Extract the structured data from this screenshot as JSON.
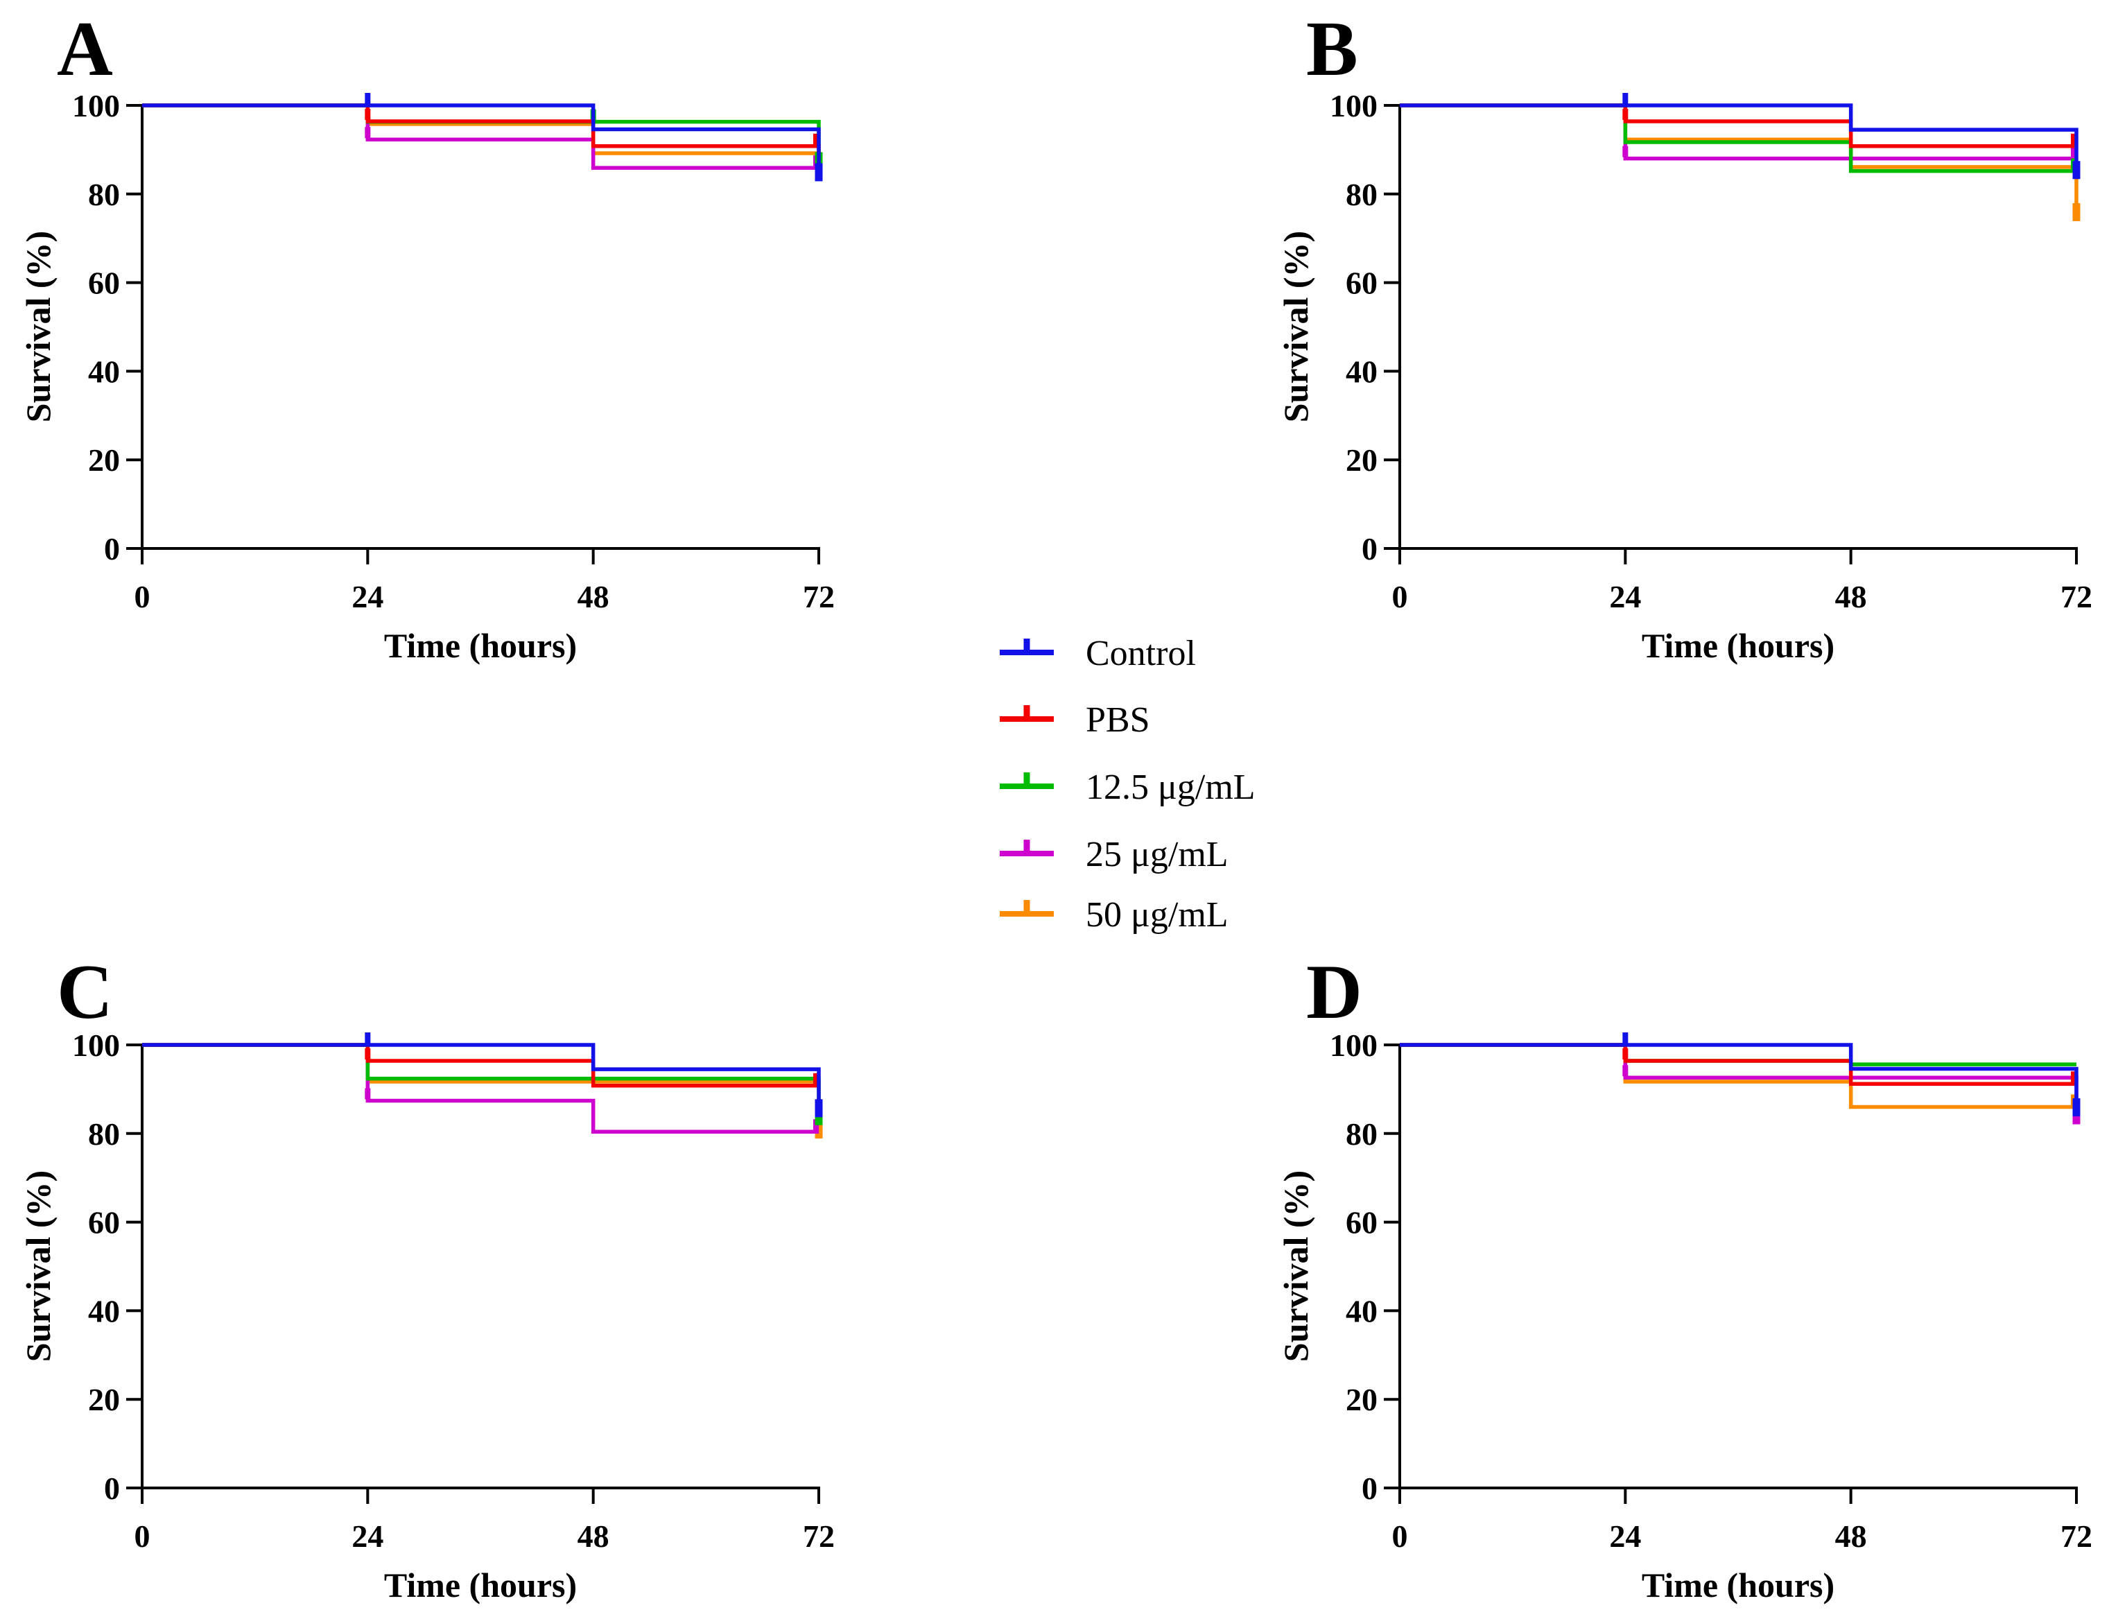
{
  "figure": {
    "background": "#ffffff",
    "axis_color": "#000000",
    "legend": {
      "items": [
        {
          "label": "Control",
          "color": "#1212E8"
        },
        {
          "label": "PBS",
          "color": "#F40000"
        },
        {
          "label": "12.5 μg/mL",
          "color": "#00BB00"
        },
        {
          "label": "25 μg/mL",
          "color": "#CE00CE"
        },
        {
          "label": "50 μg/mL",
          "color": "#FB8B00"
        }
      ]
    }
  },
  "chart_data": [
    {
      "panel": "A",
      "type": "line",
      "subtype": "kaplan-meier-step",
      "xlabel": "Time (hours)",
      "ylabel": "Survival (%)",
      "xticks": [
        0,
        24,
        48,
        72
      ],
      "yticks": [
        0,
        20,
        40,
        60,
        80,
        100
      ],
      "xlim": [
        0,
        72
      ],
      "ylim": [
        0,
        100
      ],
      "grid": false,
      "series": [
        {
          "name": "Control",
          "color": "#1212E8",
          "interval_levels": [
            100,
            100,
            94.6
          ],
          "end_value": 83.5,
          "censor_ticks": [
            {
              "t": 24,
              "level": 100
            }
          ]
        },
        {
          "name": "PBS",
          "color": "#F40000",
          "interval_levels": [
            100,
            96.4,
            90.8
          ],
          "end_value": 89.3,
          "censor_ticks": [
            {
              "t": 24,
              "level": 96.4
            },
            {
              "t": 72,
              "level": 90.8
            }
          ]
        },
        {
          "name": "12.5 μg/mL",
          "color": "#00BB00",
          "interval_levels": [
            100,
            96.3,
            96.3
          ],
          "end_value": 86.0,
          "censor_ticks": [
            {
              "t": 48,
              "level": 96.3
            }
          ]
        },
        {
          "name": "25 μg/mL",
          "color": "#CE00CE",
          "interval_levels": [
            100,
            92.3,
            85.9
          ],
          "end_value": 85.9,
          "censor_ticks": [
            {
              "t": 24,
              "level": 92.3
            },
            {
              "t": 72,
              "level": 85.9
            }
          ]
        },
        {
          "name": "50 μg/mL",
          "color": "#FB8B00",
          "interval_levels": [
            100,
            95.8,
            89.2
          ],
          "end_value": 89.2,
          "censor_ticks": []
        }
      ]
    },
    {
      "panel": "B",
      "type": "line",
      "subtype": "kaplan-meier-step",
      "xlabel": "Time (hours)",
      "ylabel": "Survival (%)",
      "xticks": [
        0,
        24,
        48,
        72
      ],
      "yticks": [
        0,
        20,
        40,
        60,
        80,
        100
      ],
      "xlim": [
        0,
        72
      ],
      "ylim": [
        0,
        100
      ],
      "grid": false,
      "series": [
        {
          "name": "Control",
          "color": "#1212E8",
          "interval_levels": [
            100,
            100,
            94.5
          ],
          "end_value": 84.0,
          "censor_ticks": [
            {
              "t": 24,
              "level": 100
            }
          ]
        },
        {
          "name": "PBS",
          "color": "#F40000",
          "interval_levels": [
            100,
            96.4,
            90.8
          ],
          "end_value": 90.8,
          "censor_ticks": [
            {
              "t": 24,
              "level": 96.4
            },
            {
              "t": 72,
              "level": 90.8
            }
          ]
        },
        {
          "name": "12.5 μg/mL",
          "color": "#00BB00",
          "interval_levels": [
            100,
            91.7,
            85.2
          ],
          "end_value": 85.2,
          "censor_ticks": [
            {
              "t": 72,
              "level": 85.2
            }
          ]
        },
        {
          "name": "25 μg/mL",
          "color": "#CE00CE",
          "interval_levels": [
            100,
            88.0,
            88.0
          ],
          "end_value": 88.0,
          "censor_ticks": [
            {
              "t": 24,
              "level": 88.0
            },
            {
              "t": 72,
              "level": 88.0
            }
          ]
        },
        {
          "name": "50 μg/mL",
          "color": "#FB8B00",
          "interval_levels": [
            100,
            92.3,
            86.1
          ],
          "end_value": 74.5,
          "censor_ticks": []
        }
      ]
    },
    {
      "panel": "C",
      "type": "line",
      "subtype": "kaplan-meier-step",
      "xlabel": "Time (hours)",
      "ylabel": "Survival (%)",
      "xticks": [
        0,
        24,
        48,
        72
      ],
      "yticks": [
        0,
        20,
        40,
        60,
        80,
        100
      ],
      "xlim": [
        0,
        72
      ],
      "ylim": [
        0,
        100
      ],
      "grid": false,
      "series": [
        {
          "name": "Control",
          "color": "#1212E8",
          "interval_levels": [
            100,
            100,
            94.5
          ],
          "end_value": 84.3,
          "censor_ticks": [
            {
              "t": 24,
              "level": 100
            }
          ]
        },
        {
          "name": "PBS",
          "color": "#F40000",
          "interval_levels": [
            100,
            96.4,
            90.8
          ],
          "end_value": 90.8,
          "censor_ticks": [
            {
              "t": 24,
              "level": 96.4
            },
            {
              "t": 72,
              "level": 90.8
            }
          ]
        },
        {
          "name": "12.5 μg/mL",
          "color": "#00BB00",
          "interval_levels": [
            100,
            92.4,
            92.4
          ],
          "end_value": 82.5,
          "censor_ticks": []
        },
        {
          "name": "25 μg/mL",
          "color": "#CE00CE",
          "interval_levels": [
            100,
            87.4,
            80.4
          ],
          "end_value": 80.4,
          "censor_ticks": [
            {
              "t": 24,
              "level": 87.4
            },
            {
              "t": 72,
              "level": 80.4
            }
          ]
        },
        {
          "name": "50 μg/mL",
          "color": "#FB8B00",
          "interval_levels": [
            100,
            91.7,
            91.7
          ],
          "end_value": 79.5,
          "censor_ticks": []
        }
      ]
    },
    {
      "panel": "D",
      "type": "line",
      "subtype": "kaplan-meier-step",
      "xlabel": "Time (hours)",
      "ylabel": "Survival (%)",
      "xticks": [
        0,
        24,
        48,
        72
      ],
      "yticks": [
        0,
        20,
        40,
        60,
        80,
        100
      ],
      "xlim": [
        0,
        72
      ],
      "ylim": [
        0,
        100
      ],
      "grid": false,
      "series": [
        {
          "name": "Control",
          "color": "#1212E8",
          "interval_levels": [
            100,
            100,
            94.6
          ],
          "end_value": 84.5,
          "censor_ticks": [
            {
              "t": 24,
              "level": 100
            }
          ]
        },
        {
          "name": "PBS",
          "color": "#F40000",
          "interval_levels": [
            100,
            96.4,
            91.2
          ],
          "end_value": 91.2,
          "censor_ticks": [
            {
              "t": 24,
              "level": 96.4
            },
            {
              "t": 72,
              "level": 91.2
            }
          ]
        },
        {
          "name": "12.5 μg/mL",
          "color": "#00BB00",
          "interval_levels": [
            100,
            96.4,
            95.6
          ],
          "end_value": 95.6,
          "censor_ticks": []
        },
        {
          "name": "25 μg/mL",
          "color": "#CE00CE",
          "interval_levels": [
            100,
            92.6,
            92.6
          ],
          "end_value": 82.7,
          "censor_ticks": [
            {
              "t": 24,
              "level": 92.6
            }
          ]
        },
        {
          "name": "50 μg/mL",
          "color": "#FB8B00",
          "interval_levels": [
            100,
            91.7,
            86.0
          ],
          "end_value": 86.0,
          "censor_ticks": [
            {
              "t": 72,
              "level": 86.0
            }
          ]
        }
      ]
    }
  ]
}
